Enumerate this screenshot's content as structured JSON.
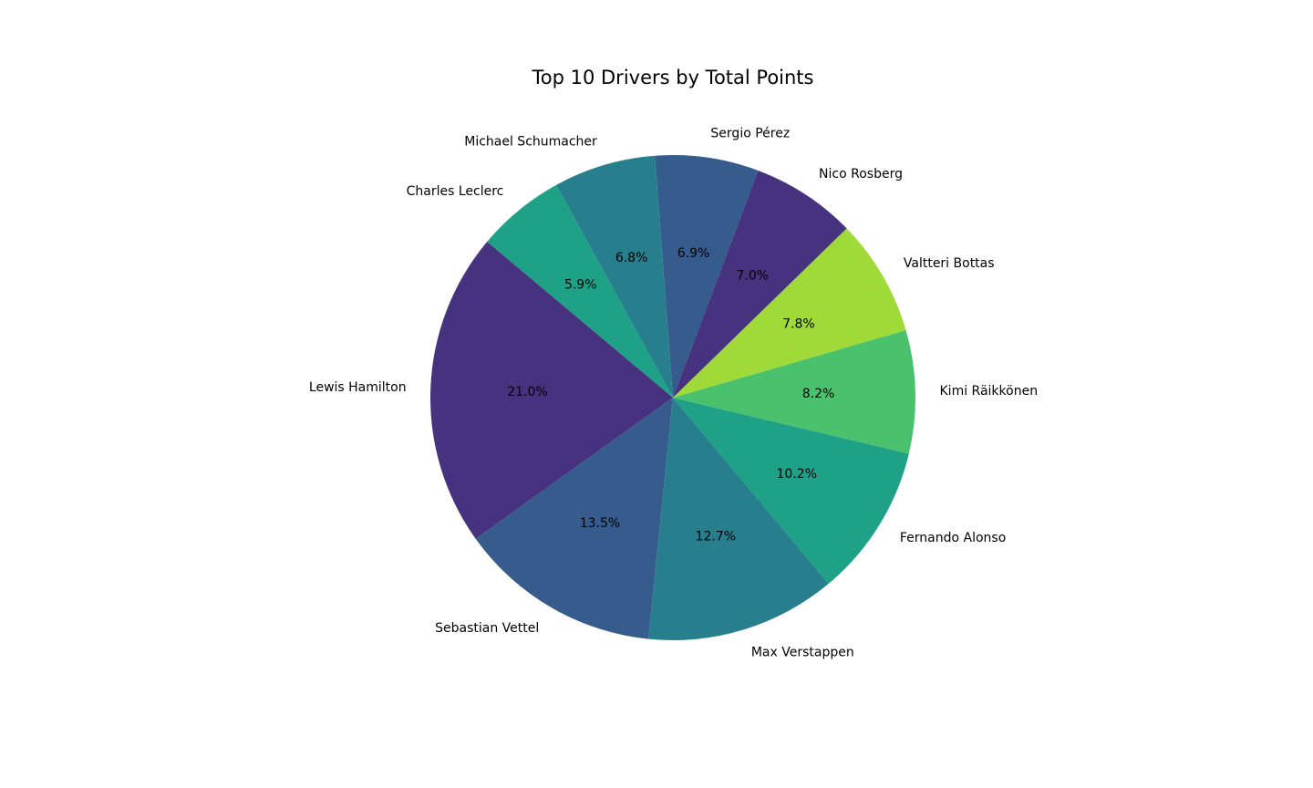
{
  "chart_data": {
    "type": "pie",
    "title": "Top 10 Drivers by Total Points",
    "start_angle_deg": 140,
    "direction": "counterclockwise",
    "slices": [
      {
        "label": "Lewis Hamilton",
        "percent": 21.0,
        "pct_text": "21.0%",
        "color": "#46327e"
      },
      {
        "label": "Sebastian Vettel",
        "percent": 13.5,
        "pct_text": "13.5%",
        "color": "#365c8d"
      },
      {
        "label": "Max Verstappen",
        "percent": 12.7,
        "pct_text": "12.7%",
        "color": "#277f8e"
      },
      {
        "label": "Fernando Alonso",
        "percent": 10.2,
        "pct_text": "10.2%",
        "color": "#1fa187"
      },
      {
        "label": "Kimi Räikkönen",
        "percent": 8.2,
        "pct_text": "8.2%",
        "color": "#4ac16d"
      },
      {
        "label": "Valtteri Bottas",
        "percent": 7.8,
        "pct_text": "7.8%",
        "color": "#a0da39"
      },
      {
        "label": "Nico Rosberg",
        "percent": 7.0,
        "pct_text": "7.0%",
        "color": "#46327e"
      },
      {
        "label": "Sergio Pérez",
        "percent": 6.9,
        "pct_text": "6.9%",
        "color": "#365c8d"
      },
      {
        "label": "Michael Schumacher",
        "percent": 6.8,
        "pct_text": "6.8%",
        "color": "#277f8e"
      },
      {
        "label": "Charles Leclerc",
        "percent": 5.9,
        "pct_text": "5.9%",
        "color": "#1fa187"
      }
    ]
  }
}
